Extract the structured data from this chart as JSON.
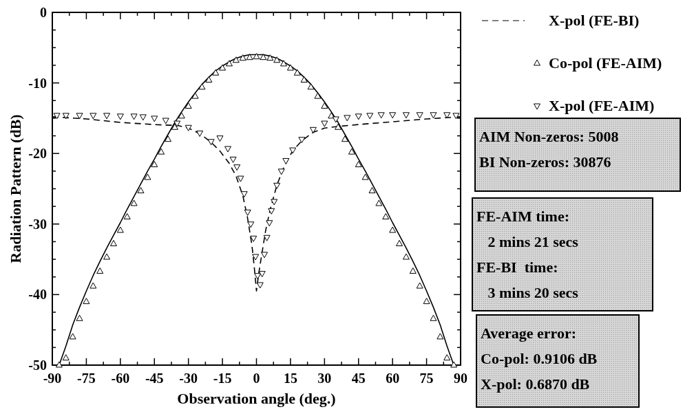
{
  "chart_data": {
    "type": "line",
    "xlabel": "Observation angle (deg.)",
    "ylabel": "Radiation Pattern (dB)",
    "xlim": [
      -90,
      90
    ],
    "ylim": [
      -50,
      0
    ],
    "xticks": [
      -90,
      {
        "value": -82.5,
        "label": null
      },
      -75,
      {
        "value": -67.5,
        "label": null
      },
      -60,
      {
        "value": -52.5,
        "label": null
      },
      -45,
      {
        "value": -37.5,
        "label": null
      },
      -30,
      {
        "value": -22.5,
        "label": null
      },
      -15,
      {
        "value": -7.5,
        "label": null
      },
      0,
      {
        "value": 7.5,
        "label": null
      },
      15,
      {
        "value": 22.5,
        "label": null
      },
      30,
      {
        "value": 37.5,
        "label": null
      },
      45,
      {
        "value": 52.5,
        "label": null
      },
      60,
      {
        "value": 67.5,
        "label": null
      },
      75,
      {
        "value": 82.5,
        "label": null
      },
      90
    ],
    "yticks": [
      -50,
      {
        "value": -47.5,
        "label": null
      },
      {
        "value": -45,
        "label": null
      },
      {
        "value": -42.5,
        "label": null
      },
      -40,
      {
        "value": -37.5,
        "label": null
      },
      {
        "value": -35,
        "label": null
      },
      {
        "value": -32.5,
        "label": null
      },
      -30,
      {
        "value": -27.5,
        "label": null
      },
      {
        "value": -25,
        "label": null
      },
      {
        "value": -22.5,
        "label": null
      },
      -20,
      {
        "value": -17.5,
        "label": null
      },
      {
        "value": -15,
        "label": null
      },
      {
        "value": -12.5,
        "label": null
      },
      -10,
      {
        "value": -7.5,
        "label": null
      },
      {
        "value": -5,
        "label": null
      },
      {
        "value": -2.5,
        "label": null
      },
      0
    ],
    "grid": false,
    "legend": "top right",
    "series": [
      {
        "color": "#000000",
        "line_style": "solid",
        "x": [
          -90,
          -87,
          -84,
          -81,
          -78,
          -75,
          -72,
          -69,
          -66,
          -63,
          -60,
          -57,
          -54,
          -51,
          -48,
          -45,
          -42,
          -39,
          -36,
          -33,
          -30,
          -27,
          -24,
          -21,
          -18,
          -15,
          -12,
          -9,
          -6,
          -3,
          0,
          3,
          6,
          9,
          12,
          15,
          18,
          21,
          24,
          27,
          30,
          33,
          36,
          39,
          42,
          45,
          48,
          51,
          54,
          57,
          60,
          63,
          66,
          69,
          72,
          75,
          78,
          81,
          84,
          87,
          90
        ],
        "values": [
          -50,
          -50,
          -47.3,
          -44.3,
          -41.8,
          -39.5,
          -37.3,
          -35.3,
          -33.4,
          -31.6,
          -29.8,
          -27.9,
          -26.1,
          -24.3,
          -22.5,
          -20.8,
          -19,
          -17.3,
          -15.6,
          -14.1,
          -12.7,
          -11.4,
          -10.2,
          -9.2,
          -8.3,
          -7.6,
          -7,
          -6.5,
          -6.2,
          -6,
          -6,
          -6,
          -6.2,
          -6.5,
          -7,
          -7.6,
          -8.3,
          -9.2,
          -10.2,
          -11.4,
          -12.7,
          -14.1,
          -15.6,
          -17.3,
          -19,
          -20.8,
          -22.5,
          -24.3,
          -26.1,
          -27.9,
          -29.8,
          -31.6,
          -33.4,
          -35.3,
          -37.3,
          -39.5,
          -41.8,
          -44.3,
          -47.3,
          -50,
          -50
        ]
      },
      {
        "name": "X-pol (FE-BI)",
        "color": "#000000",
        "line_style": "dashed",
        "x": [
          -90,
          -75,
          -60,
          -45,
          -38,
          -35,
          -30,
          -25,
          -20,
          -16,
          -12,
          -9,
          -6,
          -4,
          -2,
          -1,
          0,
          1,
          2,
          4,
          6,
          9,
          12,
          16,
          20,
          25,
          30,
          35,
          45,
          60,
          75,
          90
        ],
        "values": [
          -14.8,
          -15.1,
          -15.6,
          -15.9,
          -16,
          -16,
          -16.4,
          -17.2,
          -18.4,
          -19.7,
          -21.4,
          -23.2,
          -26,
          -29,
          -33,
          -36,
          -39.5,
          -37,
          -35,
          -31,
          -28,
          -24.5,
          -22,
          -19.6,
          -18.2,
          -17,
          -16.4,
          -16.2,
          -15.9,
          -15.5,
          -15.1,
          -14.8
        ]
      },
      {
        "type": "scatter",
        "name": "Co-pol (FE-AIM)",
        "color": "#000000",
        "marker": "triangle",
        "x": [
          -87,
          -84,
          -81,
          -78,
          -75,
          -72,
          -69,
          -66,
          -63,
          -60,
          -57,
          -54,
          -51,
          -48,
          -45,
          -42,
          -39,
          -36,
          -33,
          -30,
          -27,
          -24,
          -21,
          -18,
          -15,
          -12,
          -9,
          -6,
          -3,
          0,
          3,
          6,
          9,
          12,
          15,
          18,
          21,
          24,
          27,
          30,
          33,
          36,
          39,
          42,
          45,
          48,
          51,
          54,
          57,
          60,
          63,
          66,
          69,
          72,
          75,
          78,
          81,
          84,
          87
        ],
        "values": [
          -50,
          -49,
          -46,
          -43.4,
          -41,
          -38.8,
          -36.7,
          -34.7,
          -32.8,
          -30.9,
          -29,
          -27.1,
          -25.3,
          -23.4,
          -21.6,
          -19.8,
          -18,
          -16.3,
          -14.7,
          -13.3,
          -11.9,
          -10.6,
          -9.6,
          -8.6,
          -7.9,
          -7.3,
          -6.8,
          -6.5,
          -6.4,
          -6.3,
          -6.4,
          -6.5,
          -6.8,
          -7.3,
          -7.9,
          -8.6,
          -9.6,
          -10.6,
          -11.9,
          -13.3,
          -14.7,
          -16.3,
          -18,
          -19.8,
          -21.6,
          -23.4,
          -25.3,
          -27.1,
          -29,
          -30.9,
          -32.8,
          -34.7,
          -36.7,
          -38.8,
          -41,
          -43.4,
          -46,
          -49,
          -50
        ]
      },
      {
        "type": "scatter",
        "name": "X-pol (FE-AIM)",
        "color": "#000000",
        "marker": "triangle-down",
        "x": [
          -88,
          -84,
          -78,
          -72,
          -66,
          -60,
          -54,
          -50,
          -45,
          -40,
          -35,
          -30,
          -25,
          -20,
          -16.1,
          -12.6,
          -10.3,
          -8.6,
          -7,
          -5.4,
          -3.9,
          -2.5,
          -1.3,
          -0.4,
          0.5,
          1.6,
          2.5,
          3.5,
          4.6,
          5.7,
          6.6,
          7.8,
          9,
          11,
          13,
          16,
          20,
          25,
          30,
          35,
          40,
          45,
          50,
          55,
          60,
          66,
          72,
          78,
          84,
          88
        ],
        "values": [
          -14.6,
          -14.6,
          -14.6,
          -14.6,
          -14.6,
          -14.7,
          -14.7,
          -14.8,
          -15,
          -15.3,
          -15.7,
          -16.3,
          -17.1,
          -18.3,
          -17.8,
          -19.3,
          -20.8,
          -21.9,
          -23.5,
          -25.7,
          -28.3,
          -30,
          -32,
          -34.6,
          -37.3,
          -38.6,
          -37,
          -34.3,
          -31.9,
          -29.8,
          -28.1,
          -26.8,
          -24.5,
          -22.5,
          -21,
          -19.5,
          -18,
          -16.6,
          -15.7,
          -15.1,
          -14.9,
          -14.7,
          -14.6,
          -14.5,
          -14.5,
          -14.5,
          -14.5,
          -14.5,
          -14.5,
          -14.6
        ]
      }
    ],
    "annotations": [
      "AIM Non-zeros: 5008\nBI Non-zeros: 30876",
      "FE-AIM time:\n   2 mins 21 secs\nFE-BI  time:\n   3 mins 20 secs",
      "Average error:\nCo-pol: 0.9106 dB\nX-pol: 0.6870 dB"
    ]
  }
}
